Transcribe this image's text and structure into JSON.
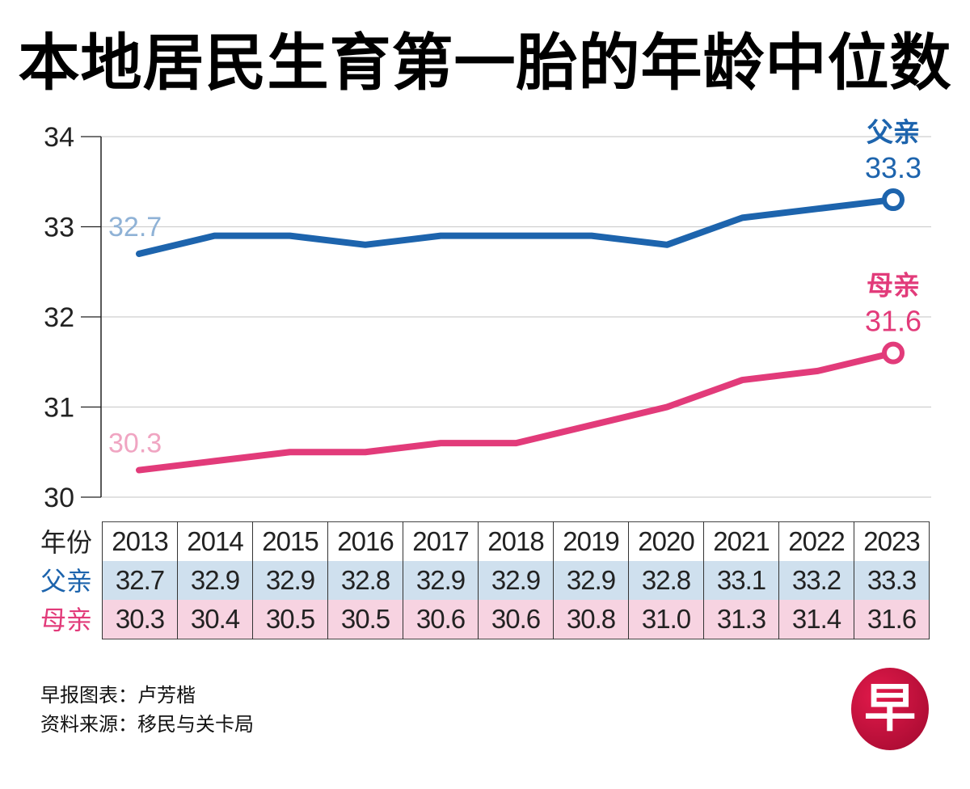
{
  "title": "本地居民生育第一胎的年龄中位数",
  "chart_data": {
    "type": "line",
    "title": "本地居民生育第一胎的年龄中位数",
    "xlabel": "年份",
    "ylabel": "",
    "x": [
      "2013",
      "2014",
      "2015",
      "2016",
      "2017",
      "2018",
      "2019",
      "2020",
      "2021",
      "2022",
      "2023"
    ],
    "ylim": [
      30,
      34
    ],
    "yticks": [
      30,
      31,
      32,
      33,
      34
    ],
    "ytick_labels": [
      "30",
      "31",
      "32",
      "33",
      "34"
    ],
    "grid": true,
    "series": [
      {
        "name": "父亲",
        "color": "#1d64ad",
        "start_label": "32.7",
        "start_label_color": "#8fb2d6",
        "end_label": "33.3",
        "values": [
          32.7,
          32.9,
          32.9,
          32.8,
          32.9,
          32.9,
          32.9,
          32.8,
          33.1,
          33.2,
          33.3
        ]
      },
      {
        "name": "母亲",
        "color": "#e23b7a",
        "start_label": "30.3",
        "start_label_color": "#f0a5c2",
        "end_label": "31.6",
        "values": [
          30.3,
          30.4,
          30.5,
          30.5,
          30.6,
          30.6,
          30.8,
          31.0,
          31.3,
          31.4,
          31.6
        ]
      }
    ]
  },
  "table": {
    "year_label": "年份",
    "father_label": "父亲",
    "mother_label": "母亲",
    "years": [
      "2013",
      "2014",
      "2015",
      "2016",
      "2017",
      "2018",
      "2019",
      "2020",
      "2021",
      "2022",
      "2023"
    ],
    "father": [
      "32.7",
      "32.9",
      "32.9",
      "32.8",
      "32.9",
      "32.9",
      "32.9",
      "32.8",
      "33.1",
      "33.2",
      "33.3"
    ],
    "mother": [
      "30.3",
      "30.4",
      "30.5",
      "30.5",
      "30.6",
      "30.6",
      "30.8",
      "31.0",
      "31.3",
      "31.4",
      "31.6"
    ]
  },
  "credits": {
    "chart_by": "早报图表：卢芳楷",
    "source": "资料来源：移民与关卡局"
  },
  "logo": {
    "glyph": "早",
    "color": "#c8103e"
  }
}
